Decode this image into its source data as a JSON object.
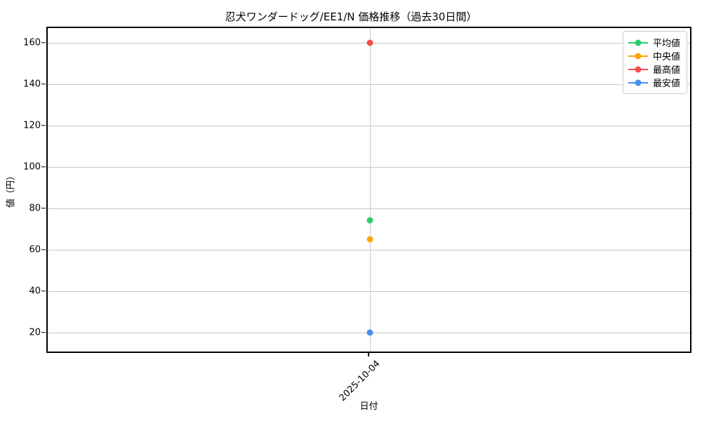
{
  "chart_data": {
    "type": "line",
    "title": "忍犬ワンダードッグ/EE1/N 価格推移（過去30日間）",
    "xlabel": "日付",
    "ylabel": "値（円）",
    "x": [
      "2025-10-04"
    ],
    "series": [
      {
        "name": "平均値",
        "color": "#2ecc71",
        "values": [
          74
        ]
      },
      {
        "name": "中央値",
        "color": "#ffa502",
        "values": [
          65
        ]
      },
      {
        "name": "最高値",
        "color": "#fa4b4b",
        "values": [
          160
        ]
      },
      {
        "name": "最安値",
        "color": "#4691eb",
        "values": [
          20
        ]
      }
    ],
    "yticks": [
      20,
      40,
      60,
      80,
      100,
      120,
      140,
      160
    ],
    "ylim": [
      10.8,
      167.0
    ],
    "grid": true,
    "grid_color": "#c8c8c8",
    "legend_position": "upper right",
    "axis_color": "#000000",
    "background_color": "#ffffff"
  }
}
